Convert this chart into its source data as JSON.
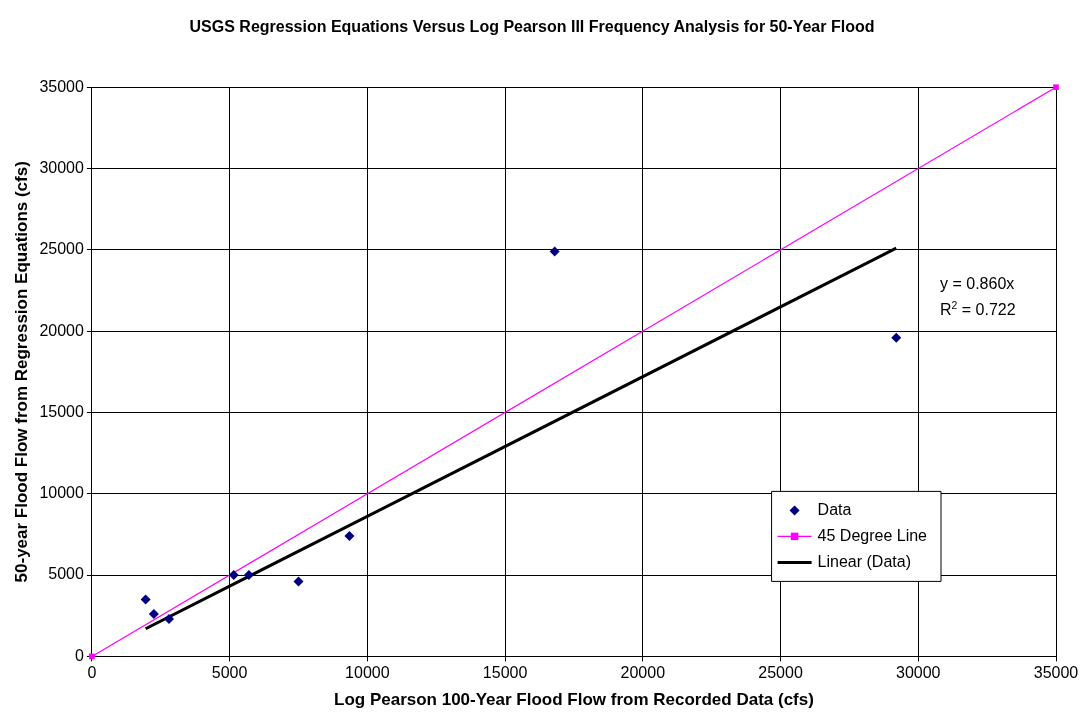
{
  "chart_data": {
    "type": "scatter",
    "title": "USGS Regression Equations Versus Log Pearson III Frequency Analysis for 50-Year Flood",
    "xlabel": "Log Pearson 100-Year Flood Flow from Recorded Data (cfs)",
    "ylabel": "50-year Flood Flow from Regression Equations (cfs)",
    "xlim": [
      0,
      35000
    ],
    "xticks": [
      0,
      5000,
      10000,
      15000,
      20000,
      25000,
      30000,
      35000
    ],
    "ylim": [
      0,
      35000
    ],
    "yticks": [
      0,
      5000,
      10000,
      15000,
      20000,
      25000,
      30000,
      35000
    ],
    "grid": true,
    "legend": "bottom right",
    "series": [
      {
        "name": "Data",
        "color": "#000080",
        "marker": "diamond",
        "x": [
          1950,
          2250,
          2800,
          5150,
          5700,
          7500,
          9350,
          16800,
          29200
        ],
        "values": [
          3500,
          2600,
          2300,
          5000,
          5000,
          4600,
          7400,
          24900,
          19600
        ]
      },
      {
        "name": "45 Degree Line",
        "type": "line",
        "color": "#ff00ff",
        "marker": "square",
        "x": [
          0,
          35000
        ],
        "values": [
          0,
          35000
        ]
      },
      {
        "name": "Linear (Data)",
        "type": "line",
        "color": "#000000",
        "marker": "none",
        "x": [
          1950,
          29200
        ],
        "values": [
          1700,
          25100
        ]
      }
    ],
    "annotations": [
      "y = 0.860x",
      "R$^{2}$ = 0.722"
    ]
  }
}
